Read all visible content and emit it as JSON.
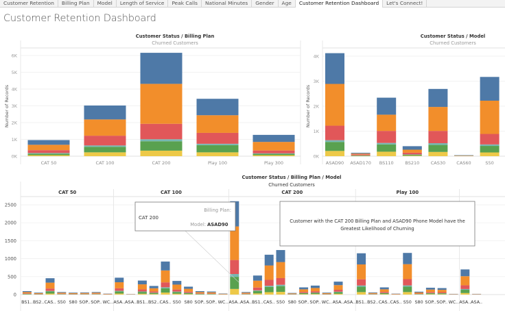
{
  "tabs": [
    {
      "label": "Customer Retention",
      "active": false
    },
    {
      "label": "Billing Plan",
      "active": false
    },
    {
      "label": "Model",
      "active": false
    },
    {
      "label": "Length of Service",
      "active": false
    },
    {
      "label": "Peak Calls",
      "active": false
    },
    {
      "label": "National Minutes",
      "active": false
    },
    {
      "label": "Gender",
      "active": false
    },
    {
      "label": "Age",
      "active": false
    },
    {
      "label": "Customer Retention Dashboard",
      "active": true
    },
    {
      "label": "Let's Connect!",
      "active": false
    }
  ],
  "dashboard_title": "Customer Retention Dashboard",
  "colors": {
    "blue": "#4e79a7",
    "orange": "#f28e2b",
    "red": "#e15759",
    "teal": "#76b7b2",
    "green": "#59a14f",
    "yellow": "#edc948",
    "grid": "#eeeeee",
    "axis": "#d9d9d9",
    "muted_text": "#999999"
  },
  "annotation_tooltip": {
    "billing_plan_label": "Billing Plan:",
    "billing_plan_value": "CAT 200",
    "model_label": "Model:",
    "model_value": "ASAD90"
  },
  "annotation_callout": {
    "text_line1": "Customer with the CAT 200 Billing Plan and ASAD90 Phone Model have the",
    "text_line2": "Greatest Likelihood of Churning"
  },
  "chart_data": [
    {
      "id": "billing-plan",
      "type": "bar",
      "stacked": true,
      "title": "Customer Status / Billing Plan",
      "subtitle": "Churned Customers",
      "xlabel": "",
      "ylabel": "Number of Records",
      "ylim": [
        0,
        6500
      ],
      "yticks": [
        0,
        1000,
        2000,
        3000,
        4000,
        5000,
        6000
      ],
      "ytick_labels": [
        "0K",
        "1K",
        "2K",
        "3K",
        "4K",
        "5K",
        "6K"
      ],
      "grid": true,
      "categories": [
        "CAT 50",
        "CAT 100",
        "CAT 200",
        "Play 100",
        "Play 300"
      ],
      "series": [
        {
          "name": "yellow",
          "color": "yellow",
          "values": [
            60,
            230,
            330,
            230,
            60
          ]
        },
        {
          "name": "green",
          "color": "green",
          "values": [
            90,
            330,
            560,
            430,
            80
          ]
        },
        {
          "name": "teal",
          "color": "teal",
          "values": [
            40,
            80,
            120,
            80,
            30
          ]
        },
        {
          "name": "red",
          "color": "red",
          "values": [
            170,
            580,
            920,
            650,
            170
          ]
        },
        {
          "name": "orange",
          "color": "orange",
          "values": [
            320,
            970,
            2380,
            1050,
            510
          ]
        },
        {
          "name": "blue",
          "color": "blue",
          "values": [
            280,
            830,
            1850,
            980,
            420
          ]
        }
      ]
    },
    {
      "id": "model",
      "type": "bar",
      "stacked": true,
      "title": "Customer Status / Model",
      "subtitle": "Churned Customers",
      "xlabel": "",
      "ylabel": "Number of Records",
      "ylim": [
        0,
        4300
      ],
      "yticks": [
        0,
        1000,
        2000,
        3000,
        4000
      ],
      "ytick_labels": [
        "0K",
        "1K",
        "2K",
        "3K",
        "4K"
      ],
      "grid": true,
      "categories": [
        "ASAD90",
        "ASAD170",
        "BS110",
        "BS210",
        "CAS30",
        "CAS60",
        "S50",
        "S80"
      ],
      "series": [
        {
          "name": "yellow",
          "color": "yellow",
          "values": [
            210,
            10,
            180,
            20,
            170,
            5,
            150,
            20
          ]
        },
        {
          "name": "green",
          "color": "green",
          "values": [
            360,
            20,
            290,
            40,
            280,
            5,
            260,
            50
          ]
        },
        {
          "name": "teal",
          "color": "teal",
          "values": [
            70,
            5,
            60,
            10,
            70,
            2,
            60,
            10
          ]
        },
        {
          "name": "red",
          "color": "red",
          "values": [
            580,
            40,
            480,
            70,
            490,
            5,
            420,
            90
          ]
        },
        {
          "name": "orange",
          "color": "orange",
          "values": [
            1670,
            30,
            650,
            120,
            960,
            10,
            1330,
            110
          ]
        },
        {
          "name": "blue",
          "color": "blue",
          "values": [
            1230,
            30,
            680,
            140,
            720,
            13,
            950,
            140
          ]
        }
      ]
    },
    {
      "id": "billing-plan-model",
      "type": "bar",
      "stacked": true,
      "title": "Customer Status / Billing Plan / Model",
      "subtitle": "Churned Customers",
      "xlabel": "",
      "ylabel": "",
      "ylim": [
        0,
        2750
      ],
      "yticks": [
        0,
        500,
        1000,
        1500,
        2000,
        2500
      ],
      "ytick_labels": [
        "0",
        "500",
        "1000",
        "1500",
        "2000",
        "2500"
      ],
      "grid": true,
      "panels": [
        {
          "name": "CAT 50",
          "categories": [
            "BS1..",
            "BS2..",
            "CAS..",
            "S50",
            "S80",
            "SOP..",
            "SOP..",
            "WC.."
          ],
          "totals": [
            95,
            55,
            455,
            70,
            55,
            60,
            70,
            25
          ]
        },
        {
          "name": "CAT 100",
          "categories": [
            "ASA..",
            "ASA..",
            "BS1..",
            "BS2..",
            "CAS..",
            "S50",
            "S80",
            "SOP..",
            "SOP..",
            "WC.."
          ],
          "totals": [
            470,
            15,
            390,
            240,
            920,
            380,
            220,
            95,
            85,
            30
          ]
        },
        {
          "name": "CAT 200",
          "categories": [
            "ASA..",
            "ASA..",
            "BS1..",
            "CAS..",
            "S50",
            "S80",
            "SOP..",
            "SOP..",
            "WC..",
            "ASA..",
            "ASA.."
          ],
          "totals": [
            2600,
            70,
            530,
            1110,
            1240,
            45,
            200,
            250,
            55,
            360,
            0
          ]
        },
        {
          "name": "Play 100",
          "categories": [
            "BS1..",
            "BS2..",
            "CAS..",
            "CAS..",
            "S50",
            "S80",
            "SOP..",
            "SOP..",
            "WC.."
          ],
          "totals": [
            1150,
            60,
            200,
            25,
            1160,
            80,
            190,
            180,
            20
          ]
        },
        {
          "name": "",
          "categories": [
            "ASA..",
            "ASA.."
          ],
          "totals": [
            700,
            20
          ]
        }
      ],
      "segment_fractions": {
        "order": [
          "yellow",
          "green",
          "teal",
          "red",
          "orange",
          "blue"
        ],
        "default": [
          0.06,
          0.13,
          0.03,
          0.15,
          0.36,
          0.27
        ]
      }
    }
  ]
}
